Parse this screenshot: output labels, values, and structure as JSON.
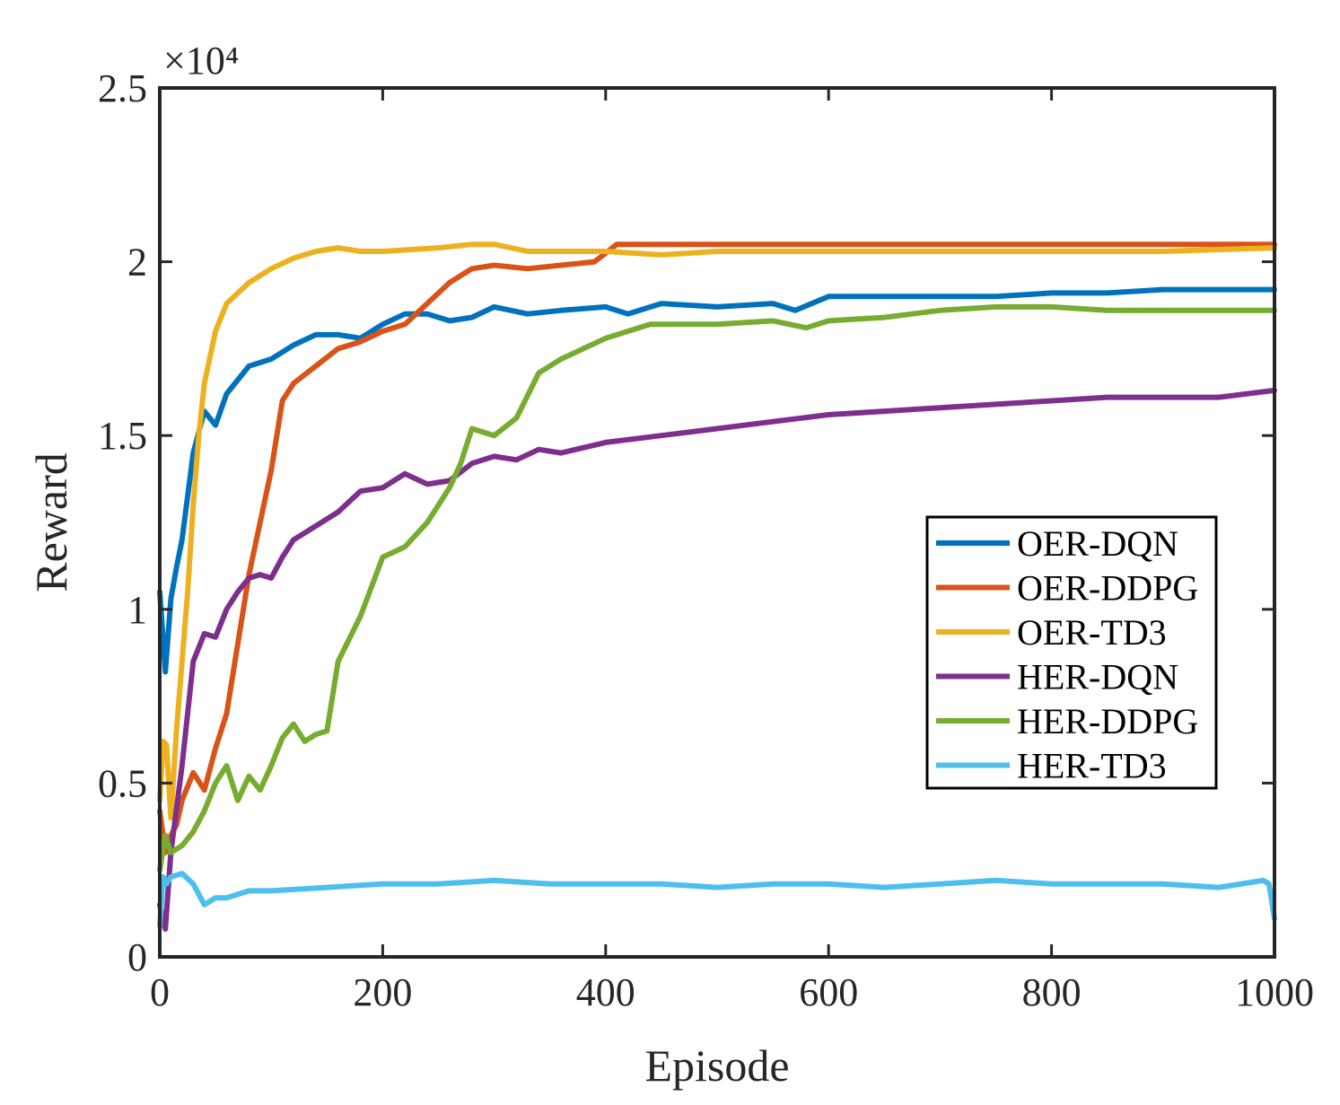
{
  "chart_data": {
    "type": "line",
    "title": "",
    "xlabel": "Episode",
    "ylabel": "Reward",
    "xlim": [
      0,
      1000
    ],
    "ylim": [
      0,
      25000
    ],
    "y_exponent_label": "×10⁴",
    "x_ticks": [
      0,
      200,
      400,
      600,
      800,
      1000
    ],
    "x_tick_labels": [
      "0",
      "200",
      "400",
      "600",
      "800",
      "1000"
    ],
    "y_ticks": [
      0,
      5000,
      10000,
      15000,
      20000,
      25000
    ],
    "y_tick_labels": [
      "0",
      "0.5",
      "1",
      "1.5",
      "2",
      "2.5"
    ],
    "grid": false,
    "legend_position": "right-middle",
    "series": [
      {
        "name": "OER-DQN",
        "color": "#0072BD",
        "x": [
          0,
          5,
          10,
          15,
          20,
          30,
          40,
          50,
          60,
          70,
          80,
          100,
          120,
          140,
          160,
          180,
          200,
          220,
          240,
          260,
          280,
          300,
          330,
          360,
          400,
          420,
          450,
          500,
          550,
          570,
          600,
          650,
          700,
          750,
          800,
          850,
          900,
          950,
          1000
        ],
        "y": [
          10500,
          8200,
          10300,
          11200,
          12000,
          14500,
          15700,
          15300,
          16200,
          16600,
          17000,
          17200,
          17600,
          17900,
          17900,
          17800,
          18200,
          18500,
          18500,
          18300,
          18400,
          18700,
          18500,
          18600,
          18700,
          18500,
          18800,
          18700,
          18800,
          18600,
          19000,
          19000,
          19000,
          19000,
          19100,
          19100,
          19200,
          19200,
          19200
        ]
      },
      {
        "name": "OER-DDPG",
        "color": "#D95319",
        "x": [
          0,
          5,
          10,
          15,
          20,
          30,
          40,
          50,
          60,
          70,
          80,
          90,
          100,
          110,
          120,
          140,
          160,
          180,
          200,
          220,
          240,
          260,
          280,
          300,
          330,
          360,
          390,
          410,
          450,
          500,
          550,
          600,
          700,
          800,
          900,
          1000
        ],
        "y": [
          4200,
          3000,
          3500,
          3800,
          4500,
          5300,
          4800,
          6000,
          7000,
          9000,
          11000,
          12500,
          14000,
          16000,
          16500,
          17000,
          17500,
          17700,
          18000,
          18200,
          18800,
          19400,
          19800,
          19900,
          19800,
          19900,
          20000,
          20500,
          20500,
          20500,
          20500,
          20500,
          20500,
          20500,
          20500,
          20500
        ]
      },
      {
        "name": "OER-TD3",
        "color": "#EDB120",
        "x": [
          0,
          3,
          6,
          10,
          15,
          20,
          25,
          30,
          35,
          40,
          50,
          60,
          80,
          100,
          120,
          140,
          160,
          180,
          200,
          250,
          280,
          300,
          330,
          360,
          400,
          450,
          500,
          600,
          700,
          800,
          900,
          1000
        ],
        "y": [
          4500,
          6200,
          6100,
          4000,
          6500,
          8500,
          10500,
          13000,
          15000,
          16500,
          18000,
          18800,
          19400,
          19800,
          20100,
          20300,
          20400,
          20300,
          20300,
          20400,
          20500,
          20500,
          20300,
          20300,
          20300,
          20200,
          20300,
          20300,
          20300,
          20300,
          20300,
          20400
        ]
      },
      {
        "name": "HER-DQN",
        "color": "#7E2F8E",
        "x": [
          0,
          5,
          10,
          20,
          30,
          40,
          50,
          60,
          70,
          80,
          90,
          100,
          110,
          120,
          140,
          160,
          180,
          200,
          220,
          240,
          260,
          280,
          300,
          320,
          340,
          360,
          400,
          450,
          500,
          550,
          600,
          650,
          700,
          750,
          800,
          850,
          900,
          950,
          1000
        ],
        "y": [
          1500,
          800,
          3000,
          5500,
          8500,
          9300,
          9200,
          10000,
          10500,
          10900,
          11000,
          10900,
          11500,
          12000,
          12400,
          12800,
          13400,
          13500,
          13900,
          13600,
          13700,
          14200,
          14400,
          14300,
          14600,
          14500,
          14800,
          15000,
          15200,
          15400,
          15600,
          15700,
          15800,
          15900,
          16000,
          16100,
          16100,
          16100,
          16300
        ]
      },
      {
        "name": "HER-DDPG",
        "color": "#77AC30",
        "x": [
          0,
          5,
          10,
          20,
          30,
          40,
          50,
          60,
          70,
          80,
          90,
          100,
          110,
          120,
          130,
          140,
          150,
          160,
          180,
          200,
          220,
          240,
          260,
          270,
          280,
          300,
          320,
          340,
          360,
          380,
          400,
          420,
          440,
          460,
          500,
          550,
          580,
          600,
          650,
          700,
          750,
          800,
          850,
          900,
          950,
          1000
        ],
        "y": [
          2500,
          3500,
          3000,
          3200,
          3600,
          4200,
          5000,
          5500,
          4500,
          5200,
          4800,
          5500,
          6300,
          6700,
          6200,
          6400,
          6500,
          8500,
          9800,
          11500,
          11800,
          12500,
          13500,
          14200,
          15200,
          15000,
          15500,
          16800,
          17200,
          17500,
          17800,
          18000,
          18200,
          18200,
          18200,
          18300,
          18100,
          18300,
          18400,
          18600,
          18700,
          18700,
          18600,
          18600,
          18600,
          18600
        ]
      },
      {
        "name": "HER-TD3",
        "color": "#4DBEEE",
        "x": [
          0,
          3,
          6,
          10,
          20,
          30,
          40,
          50,
          60,
          80,
          100,
          150,
          200,
          250,
          300,
          350,
          400,
          450,
          500,
          550,
          600,
          650,
          700,
          750,
          800,
          850,
          900,
          950,
          990,
          995,
          1000
        ],
        "y": [
          900,
          2300,
          2100,
          2300,
          2400,
          2100,
          1500,
          1700,
          1700,
          1900,
          1900,
          2000,
          2100,
          2100,
          2200,
          2100,
          2100,
          2100,
          2000,
          2100,
          2100,
          2000,
          2100,
          2200,
          2100,
          2100,
          2100,
          2000,
          2200,
          2100,
          1100
        ]
      }
    ]
  }
}
